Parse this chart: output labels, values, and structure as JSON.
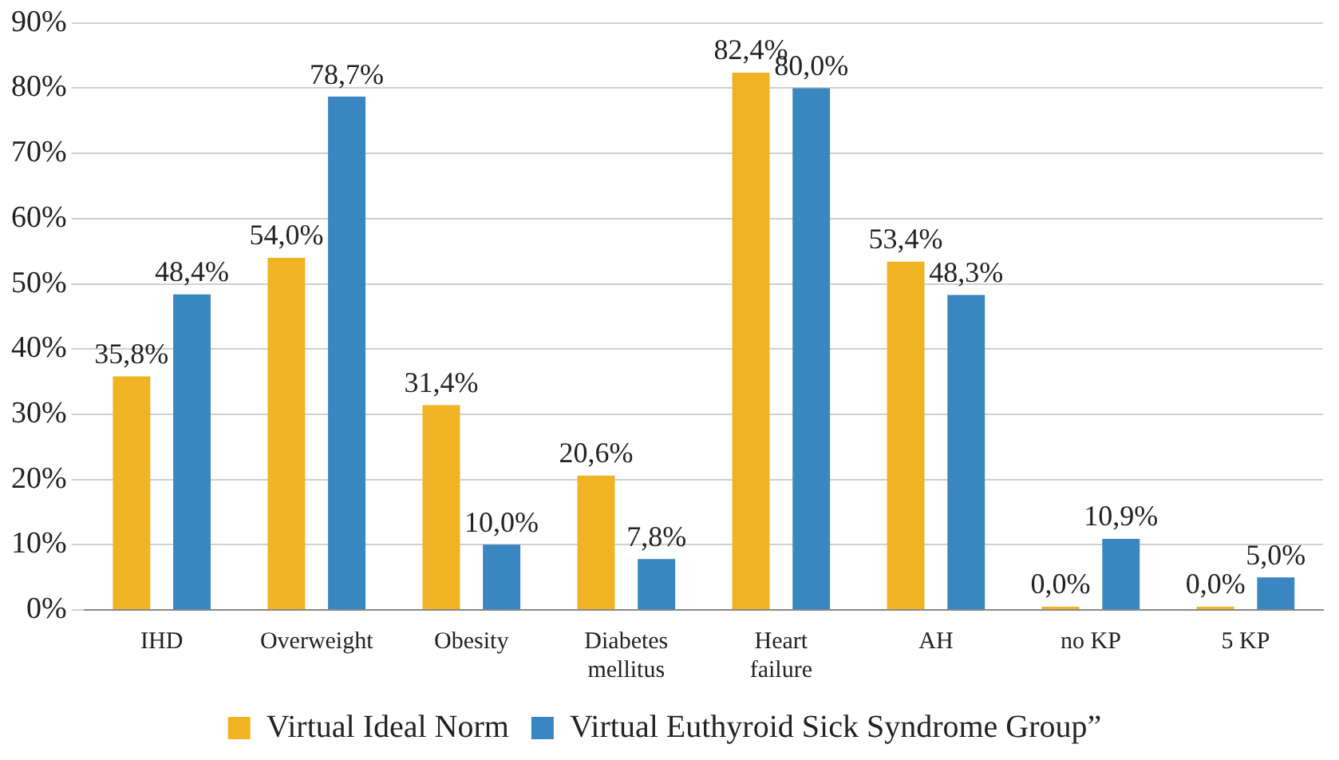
{
  "chart_data": {
    "type": "bar",
    "categories": [
      "IHD",
      "Overweight",
      "Obesity",
      "Diabetes mellitus",
      "Heart failure",
      "AH",
      "no KP",
      "5 KP"
    ],
    "series": [
      {
        "name": "Virtual Ideal Norm",
        "color": "#f0b323",
        "values": [
          35.8,
          54.0,
          31.4,
          20.6,
          82.4,
          53.4,
          0.0,
          0.0
        ],
        "value_labels": [
          "35,8%",
          "54,0%",
          "31,4%",
          "20,6%",
          "82,4%",
          "53,4%",
          "0,0%",
          "0,0%"
        ]
      },
      {
        "name": "Virtual Euthyroid Sick Syndrome Group”",
        "color": "#3a86c0",
        "values": [
          48.4,
          78.7,
          10.0,
          7.8,
          80.0,
          48.3,
          10.9,
          5.0
        ],
        "value_labels": [
          "48,4%",
          "78,7%",
          "10,0%",
          "7,8%",
          "80,0%",
          "48,3%",
          "10,9%",
          "5,0%"
        ]
      }
    ],
    "ylim": [
      0,
      90
    ],
    "yticks": [
      {
        "value": 0,
        "label": "0%"
      },
      {
        "value": 10,
        "label": "10%"
      },
      {
        "value": 20,
        "label": "20%"
      },
      {
        "value": 30,
        "label": "30%"
      },
      {
        "value": 40,
        "label": "40%"
      },
      {
        "value": 50,
        "label": "50%"
      },
      {
        "value": 60,
        "label": "60%"
      },
      {
        "value": 70,
        "label": "70%"
      },
      {
        "value": 80,
        "label": "80%"
      },
      {
        "value": 90,
        "label": "90%"
      }
    ],
    "grid": "y",
    "legend": "bottom"
  }
}
